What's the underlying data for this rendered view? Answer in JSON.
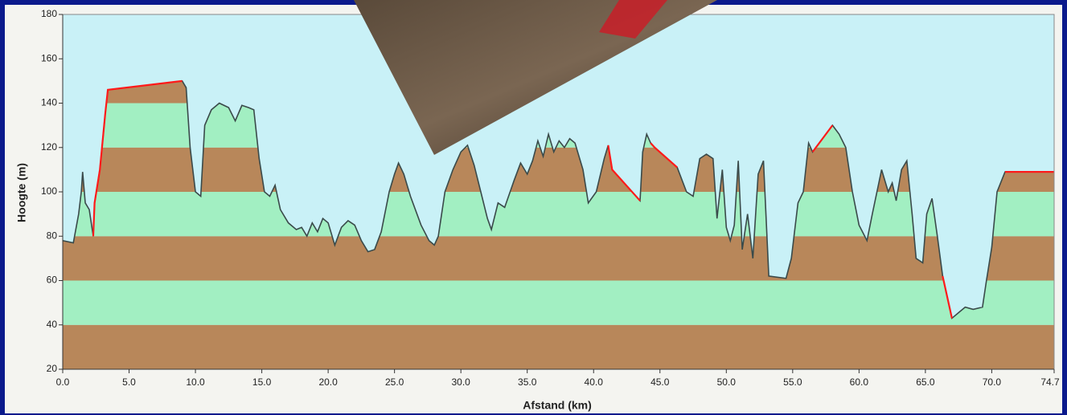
{
  "chart_data": {
    "type": "area",
    "xlabel": "Afstand  (km)",
    "ylabel": "Hoogte (m)",
    "x": [
      0,
      0.8,
      1.2,
      1.4,
      1.5,
      1.7,
      2.0,
      2.3,
      2.4,
      2.8,
      3.2,
      3.4,
      9.0,
      9.3,
      9.6,
      10.0,
      10.4,
      10.7,
      11.2,
      11.8,
      12.5,
      13.0,
      13.5,
      14.0,
      14.4,
      14.8,
      15.2,
      15.6,
      16.0,
      16.4,
      17.0,
      17.6,
      18.0,
      18.4,
      18.8,
      19.2,
      19.6,
      20.0,
      20.5,
      21.0,
      21.5,
      22.0,
      22.5,
      23.0,
      23.5,
      24.0,
      24.6,
      25.0,
      25.3,
      25.7,
      26.2,
      27.0,
      27.6,
      28.0,
      28.3,
      28.8,
      29.4,
      30.0,
      30.5,
      31.0,
      31.5,
      32.0,
      32.3,
      32.8,
      33.3,
      34.0,
      34.5,
      35.0,
      35.4,
      35.8,
      36.2,
      36.6,
      37.0,
      37.4,
      37.8,
      38.2,
      38.6,
      39.2,
      39.6,
      40.2,
      40.8,
      41.1,
      41.4,
      43.5,
      43.7,
      44.0,
      44.3,
      44.6,
      46.3,
      47.0,
      47.5,
      48.0,
      48.5,
      49.0,
      49.3,
      49.7,
      50.0,
      50.3,
      50.6,
      50.9,
      51.2,
      51.6,
      52.0,
      52.4,
      52.8,
      53.2,
      54.5,
      54.9,
      55.4,
      55.8,
      56.2,
      56.5,
      58.0,
      58.5,
      59.0,
      59.5,
      60.0,
      60.6,
      61.0,
      61.7,
      62.2,
      62.5,
      62.8,
      63.2,
      63.6,
      64.0,
      64.3,
      64.8,
      65.1,
      65.5,
      65.9,
      66.3,
      67.0,
      67.6,
      68.0,
      68.6,
      69.3,
      69.6,
      70.0,
      70.4,
      71.0,
      74.7
    ],
    "series": [
      {
        "color": "#3a4a4a",
        "values": [
          78,
          77,
          90,
          100,
          109,
          95,
          92,
          80,
          95,
          110,
          135,
          146,
          150,
          147,
          120,
          100,
          98,
          130,
          137,
          140,
          138,
          132,
          139,
          138,
          137,
          115,
          100,
          98,
          103,
          92,
          86,
          83,
          84,
          80,
          86,
          82,
          88,
          86,
          76,
          84,
          87,
          85,
          78,
          73,
          74,
          82,
          100,
          108,
          113,
          108,
          98,
          85,
          78,
          76,
          80,
          100,
          110,
          118,
          121,
          112,
          100,
          88,
          83,
          95,
          93,
          105,
          113,
          108,
          114,
          123,
          116,
          126,
          118,
          123,
          120,
          124,
          122,
          110,
          95,
          100,
          115,
          121,
          110,
          96,
          118,
          126,
          122,
          120,
          111,
          100,
          98,
          115,
          117,
          115,
          88,
          110,
          84,
          78,
          85,
          114,
          74,
          90,
          70,
          108,
          114,
          62,
          61,
          70,
          95,
          100,
          122,
          118,
          130,
          126,
          120,
          100,
          85,
          78,
          90,
          110,
          100,
          104,
          96,
          110,
          114,
          90,
          70,
          68,
          90,
          97,
          80,
          62,
          43,
          46,
          48,
          47,
          48,
          60,
          75,
          100,
          109,
          109
        ]
      },
      {
        "color": "#ff1a1a",
        "values": [
          null,
          null,
          null,
          null,
          null,
          null,
          null,
          80,
          95,
          110,
          135,
          146,
          150,
          null,
          null,
          null,
          null,
          null,
          null,
          null,
          null,
          null,
          null,
          null,
          null,
          null,
          null,
          null,
          null,
          null,
          null,
          null,
          null,
          null,
          null,
          null,
          null,
          null,
          null,
          null,
          null,
          null,
          null,
          null,
          null,
          null,
          null,
          null,
          null,
          null,
          null,
          null,
          null,
          null,
          null,
          null,
          null,
          null,
          null,
          null,
          null,
          null,
          null,
          null,
          null,
          null,
          null,
          null,
          null,
          null,
          null,
          null,
          null,
          null,
          null,
          null,
          null,
          null,
          null,
          null,
          null,
          121,
          110,
          96,
          null,
          null,
          122,
          120,
          111,
          null,
          null,
          null,
          null,
          null,
          null,
          null,
          null,
          null,
          null,
          null,
          null,
          null,
          null,
          null,
          null,
          null,
          null,
          null,
          null,
          null,
          null,
          118,
          130,
          null,
          null,
          null,
          null,
          null,
          null,
          null,
          null,
          null,
          null,
          null,
          null,
          null,
          null,
          null,
          null,
          null,
          null,
          62,
          43,
          null,
          null,
          null,
          null,
          null,
          null,
          null,
          109,
          109
        ]
      }
    ],
    "xlim": [
      0,
      74.7
    ],
    "ylim": [
      20,
      180
    ],
    "xticks": [
      {
        "value": 0,
        "label": "0.0"
      },
      {
        "value": 5,
        "label": "5.0"
      },
      {
        "value": 10,
        "label": "10.0"
      },
      {
        "value": 15,
        "label": "15.0"
      },
      {
        "value": 20,
        "label": "20.0"
      },
      {
        "value": 25,
        "label": "25.0"
      },
      {
        "value": 30,
        "label": "30.0"
      },
      {
        "value": 35,
        "label": "35.0"
      },
      {
        "value": 40,
        "label": "40.0"
      },
      {
        "value": 45,
        "label": "45.0"
      },
      {
        "value": 50,
        "label": "50.0"
      },
      {
        "value": 55,
        "label": "55.0"
      },
      {
        "value": 60,
        "label": "60.0"
      },
      {
        "value": 65,
        "label": "65.0"
      },
      {
        "value": 70,
        "label": "70.0"
      },
      74.7
    ],
    "yticks": [
      20,
      40,
      60,
      80,
      100,
      120,
      140,
      160,
      180
    ],
    "band_colors": [
      "#b8875a",
      "#a2efc2"
    ],
    "sky_color": "#c9f1f7"
  }
}
